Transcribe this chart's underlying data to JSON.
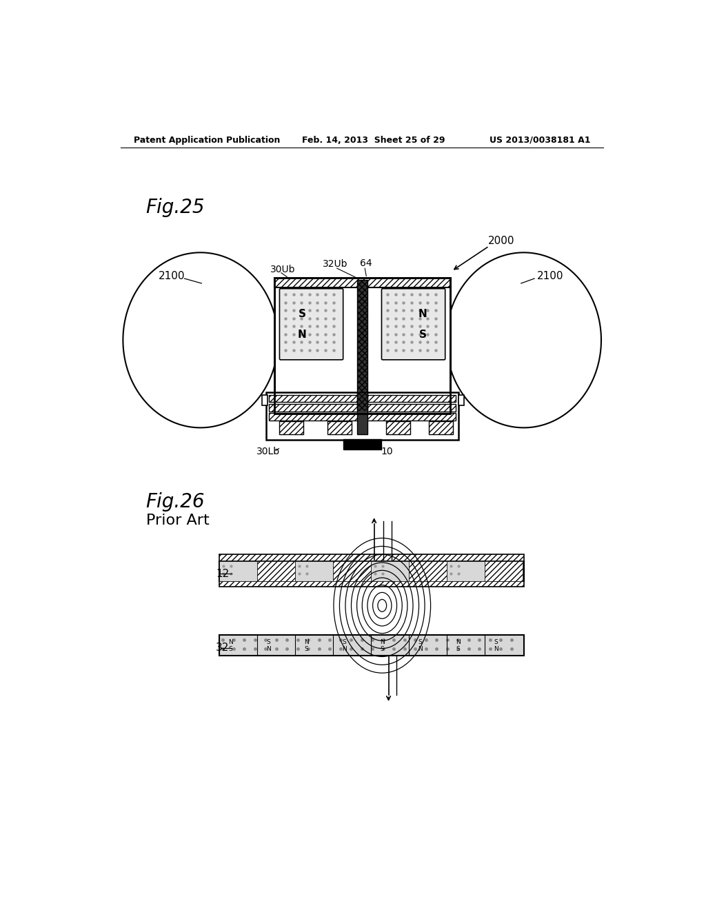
{
  "bg_color": "#ffffff",
  "header_left": "Patent Application Publication",
  "header_mid": "Feb. 14, 2013  Sheet 25 of 29",
  "header_right": "US 2013/0038181 A1",
  "fig25_label": "Fig.25",
  "fig26_label": "Fig.26",
  "fig26_sub": "Prior Art",
  "label_2000": "2000",
  "label_2100_left": "2100",
  "label_2100_right": "2100",
  "label_30Ub": "30Ub",
  "label_32Ub": "32Ub",
  "label_64": "64",
  "label_30Lb": "30Lb",
  "label_10": "10",
  "label_12": "12",
  "label_32": "32",
  "line_color": "#000000"
}
